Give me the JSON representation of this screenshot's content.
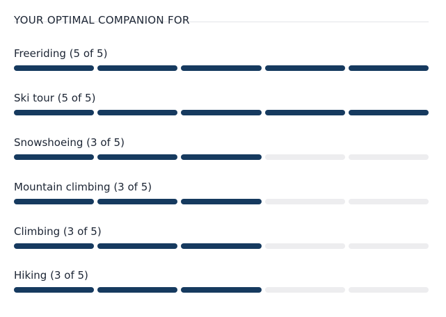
{
  "heading": "YOUR OPTIMAL COMPANION FOR",
  "colors": {
    "filled": "#163a5f",
    "empty": "#ededef",
    "text": "#1b2433",
    "divider": "#e3e5e8"
  },
  "ratings": [
    {
      "label": "Freeriding (5 of 5)",
      "value": 5,
      "max": 5
    },
    {
      "label": "Ski tour (5 of 5)",
      "value": 5,
      "max": 5
    },
    {
      "label": "Snowshoeing (3 of 5)",
      "value": 3,
      "max": 5
    },
    {
      "label": "Mountain climbing (3 of 5)",
      "value": 3,
      "max": 5
    },
    {
      "label": "Climbing (3 of 5)",
      "value": 3,
      "max": 5
    },
    {
      "label": "Hiking (3 of 5)",
      "value": 3,
      "max": 5
    }
  ]
}
